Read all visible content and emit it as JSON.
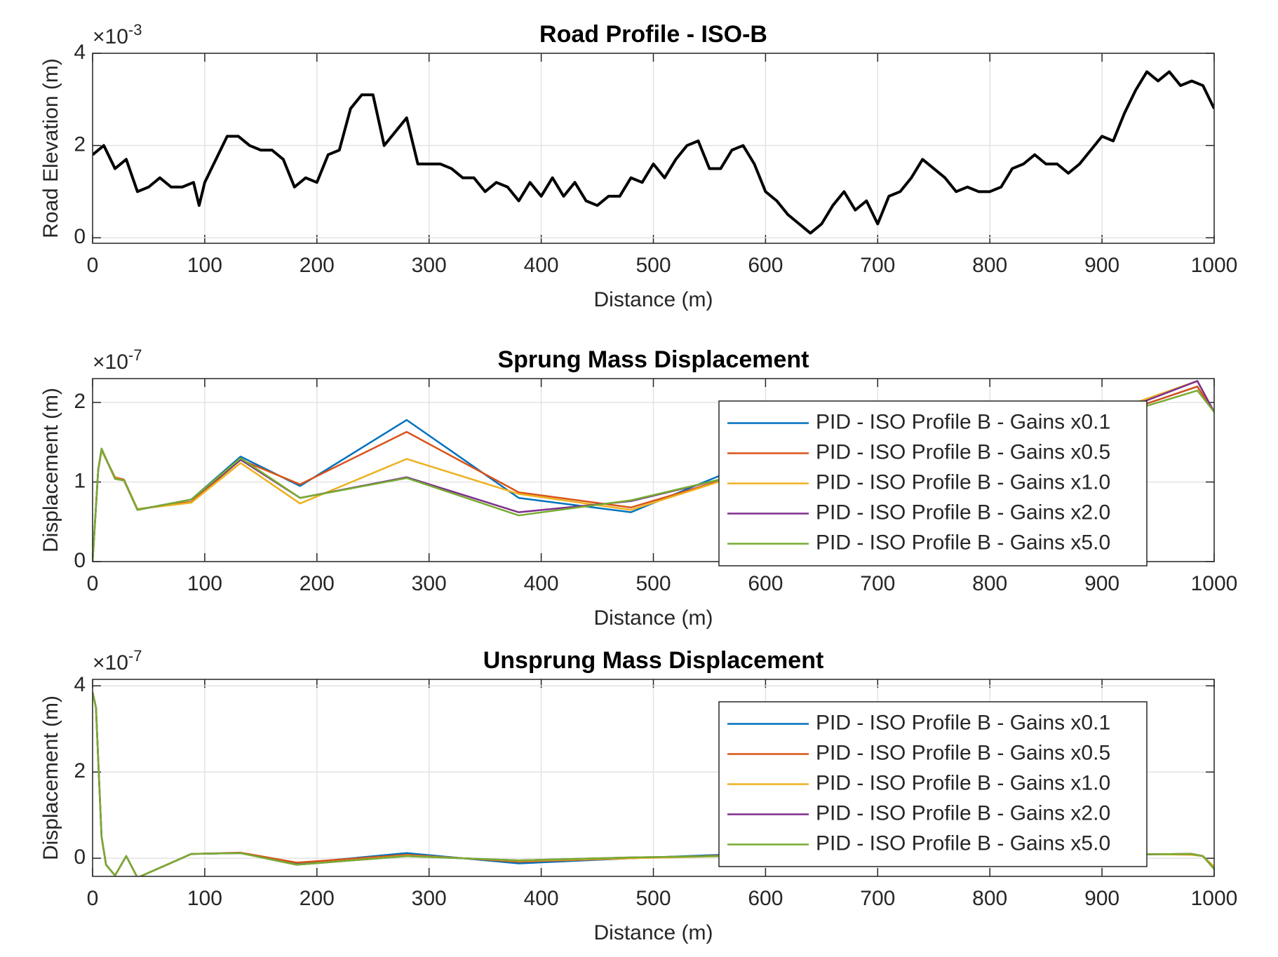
{
  "chart_data": [
    {
      "type": "line",
      "title": "Road Profile - ISO-B",
      "xlabel": "Distance (m)",
      "ylabel": "Road Elevation (m)",
      "y_multiplier": {
        "base": "×10",
        "exponent": "-3"
      },
      "x": [
        0,
        10,
        20,
        30,
        40,
        50,
        60,
        70,
        80,
        90,
        95,
        100,
        110,
        120,
        130,
        140,
        150,
        160,
        170,
        180,
        190,
        200,
        210,
        220,
        230,
        240,
        250,
        260,
        270,
        280,
        290,
        300,
        310,
        320,
        330,
        340,
        350,
        360,
        370,
        380,
        390,
        400,
        410,
        420,
        430,
        440,
        450,
        460,
        470,
        480,
        490,
        500,
        510,
        520,
        530,
        540,
        550,
        560,
        570,
        580,
        590,
        600,
        610,
        620,
        630,
        640,
        650,
        660,
        670,
        680,
        690,
        700,
        710,
        720,
        730,
        740,
        750,
        760,
        770,
        780,
        790,
        800,
        810,
        820,
        830,
        840,
        850,
        860,
        870,
        880,
        890,
        900,
        910,
        920,
        930,
        940,
        950,
        960,
        970,
        980,
        990,
        1000
      ],
      "values": [
        1.8,
        2.0,
        1.5,
        1.7,
        1.0,
        1.1,
        1.3,
        1.1,
        1.1,
        1.2,
        0.7,
        1.2,
        1.7,
        2.2,
        2.2,
        2.0,
        1.9,
        1.9,
        1.7,
        1.1,
        1.3,
        1.2,
        1.8,
        1.9,
        2.8,
        3.1,
        3.1,
        2.0,
        2.3,
        2.6,
        1.6,
        1.6,
        1.6,
        1.5,
        1.3,
        1.3,
        1.0,
        1.2,
        1.1,
        0.8,
        1.2,
        0.9,
        1.3,
        0.9,
        1.2,
        0.8,
        0.7,
        0.9,
        0.9,
        1.3,
        1.2,
        1.6,
        1.3,
        1.7,
        2.0,
        2.1,
        1.5,
        1.5,
        1.9,
        2.0,
        1.6,
        1.0,
        0.8,
        0.5,
        0.3,
        0.1,
        0.3,
        0.7,
        1.0,
        0.6,
        0.8,
        0.3,
        0.9,
        1.0,
        1.3,
        1.7,
        1.5,
        1.3,
        1.0,
        1.1,
        1.0,
        1.0,
        1.1,
        1.5,
        1.6,
        1.8,
        1.6,
        1.6,
        1.4,
        1.6,
        1.9,
        2.2,
        2.1,
        2.7,
        3.2,
        3.6,
        3.4,
        3.6,
        3.3,
        3.4,
        3.3,
        2.8
      ],
      "color": "#000000",
      "xlim": [
        0,
        1000
      ],
      "ylim": [
        -0.12,
        4
      ],
      "xticks": [
        0,
        100,
        200,
        300,
        400,
        500,
        600,
        700,
        800,
        900,
        1000
      ],
      "yticks": [
        0,
        2,
        4
      ],
      "grid": true
    },
    {
      "type": "line",
      "title": "Sprung Mass Displacement",
      "xlabel": "Distance (m)",
      "ylabel": "Displacement (m)",
      "y_multiplier": {
        "base": "×10",
        "exponent": "-7"
      },
      "x": [
        0,
        5,
        8,
        20,
        28,
        40,
        88,
        132,
        185,
        280,
        380,
        480,
        580,
        680,
        780,
        880,
        985,
        1000
      ],
      "series": [
        {
          "name": "PID - ISO Profile B - Gains x0.1",
          "color": "#0072BD",
          "values": [
            0,
            1.15,
            1.4,
            1.05,
            1.02,
            0.65,
            0.78,
            1.32,
            0.95,
            1.78,
            0.8,
            0.62,
            1.2,
            1.35,
            1.55,
            1.7,
            2.2,
            1.88
          ]
        },
        {
          "name": "PID - ISO Profile B - Gains x0.5",
          "color": "#D95319",
          "values": [
            0,
            1.15,
            1.4,
            1.06,
            1.03,
            0.66,
            0.75,
            1.28,
            0.97,
            1.63,
            0.87,
            0.68,
            1.1,
            1.3,
            1.5,
            1.7,
            2.2,
            1.88
          ]
        },
        {
          "name": "PID - ISO Profile B - Gains x1.0",
          "color": "#EDB120",
          "values": [
            0,
            1.15,
            1.4,
            1.05,
            1.02,
            0.66,
            0.74,
            1.24,
            0.73,
            1.29,
            0.85,
            0.65,
            1.1,
            1.3,
            1.5,
            1.75,
            2.27,
            1.88
          ]
        },
        {
          "name": "PID - ISO Profile B - Gains x2.0",
          "color": "#7E2F8E",
          "values": [
            0,
            1.15,
            1.42,
            1.04,
            1.02,
            0.65,
            0.78,
            1.28,
            0.8,
            1.06,
            0.62,
            0.76,
            1.1,
            1.3,
            1.5,
            1.7,
            2.27,
            1.88
          ]
        },
        {
          "name": "PID - ISO Profile B - Gains x5.0",
          "color": "#77AC30",
          "values": [
            0,
            1.15,
            1.42,
            1.04,
            1.02,
            0.65,
            0.78,
            1.3,
            0.8,
            1.05,
            0.58,
            0.77,
            1.1,
            1.3,
            1.5,
            1.7,
            2.15,
            1.88
          ]
        }
      ],
      "xlim": [
        0,
        1000
      ],
      "ylim": [
        0,
        2.3
      ],
      "xticks": [
        0,
        100,
        200,
        300,
        400,
        500,
        600,
        700,
        800,
        900,
        1000
      ],
      "yticks": [
        0,
        1,
        2
      ],
      "grid": true,
      "legend": "northeast"
    },
    {
      "type": "line",
      "title": "Unsprung Mass Displacement",
      "xlabel": "Distance (m)",
      "ylabel": "Displacement (m)",
      "y_multiplier": {
        "base": "×10",
        "exponent": "-7"
      },
      "x": [
        0,
        3,
        8,
        12,
        20,
        30,
        40,
        88,
        132,
        182,
        280,
        380,
        480,
        580,
        680,
        780,
        880,
        980,
        990,
        1000
      ],
      "series": [
        {
          "name": "PID - ISO Profile B - Gains x0.1",
          "color": "#0072BD",
          "values": [
            3.85,
            3.5,
            0.5,
            -0.15,
            -0.4,
            0.05,
            -0.45,
            0.1,
            0.12,
            -0.12,
            0.12,
            -0.12,
            0.0,
            0.1,
            -0.08,
            0.05,
            0.08,
            0.1,
            0.05,
            -0.2
          ]
        },
        {
          "name": "PID - ISO Profile B - Gains x0.5",
          "color": "#D95319",
          "values": [
            3.85,
            3.5,
            0.5,
            -0.15,
            -0.4,
            0.05,
            -0.45,
            0.1,
            0.13,
            -0.1,
            0.08,
            -0.08,
            0.0,
            0.08,
            -0.08,
            0.05,
            0.08,
            0.1,
            0.05,
            -0.2
          ]
        },
        {
          "name": "PID - ISO Profile B - Gains x1.0",
          "color": "#EDB120",
          "values": [
            3.85,
            3.5,
            0.5,
            -0.15,
            -0.4,
            0.05,
            -0.45,
            0.1,
            0.12,
            -0.15,
            0.06,
            -0.06,
            0.0,
            0.06,
            -0.06,
            0.05,
            0.12,
            0.08,
            0.05,
            -0.2
          ]
        },
        {
          "name": "PID - ISO Profile B - Gains x2.0",
          "color": "#7E2F8E",
          "values": [
            3.85,
            3.5,
            0.5,
            -0.15,
            -0.4,
            0.05,
            -0.45,
            0.1,
            0.12,
            -0.15,
            0.05,
            -0.05,
            0.02,
            0.06,
            -0.08,
            0.05,
            0.08,
            0.1,
            0.05,
            -0.25
          ]
        },
        {
          "name": "PID - ISO Profile B - Gains x5.0",
          "color": "#77AC30",
          "values": [
            3.85,
            3.5,
            0.5,
            -0.15,
            -0.4,
            0.05,
            -0.45,
            0.1,
            0.12,
            -0.15,
            0.05,
            -0.05,
            0.02,
            0.06,
            -0.08,
            0.05,
            0.08,
            0.1,
            0.05,
            -0.25
          ]
        }
      ],
      "xlim": [
        0,
        1000
      ],
      "ylim": [
        -0.42,
        4.15
      ],
      "xticks": [
        0,
        100,
        200,
        300,
        400,
        500,
        600,
        700,
        800,
        900,
        1000
      ],
      "yticks": [
        0,
        2,
        4
      ],
      "grid": true,
      "legend": "northeast"
    }
  ]
}
